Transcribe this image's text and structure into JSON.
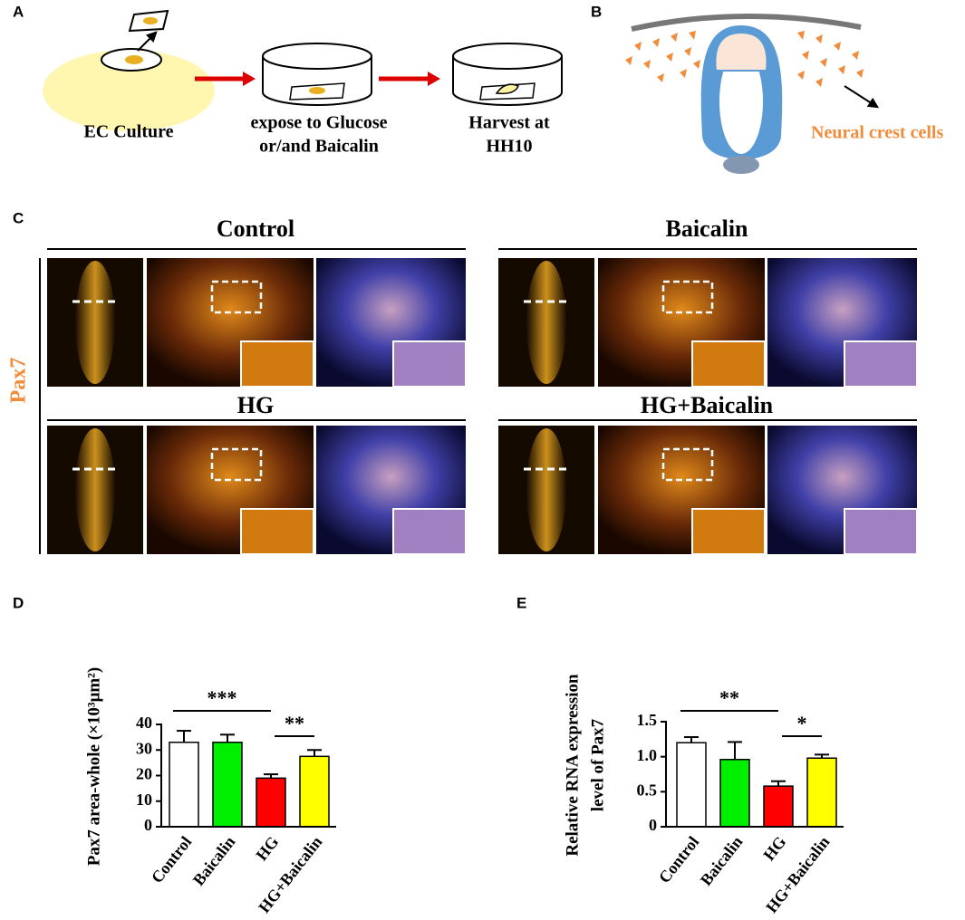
{
  "panels": {
    "a": {
      "label": "A",
      "steps": [
        [
          "EC Culture"
        ],
        [
          "expose to Glucose",
          "or/and Baicalin"
        ],
        [
          "Harvest at",
          "HH10"
        ]
      ]
    },
    "b": {
      "label": "B",
      "annotation": "Neural crest cells"
    },
    "c": {
      "label": "C",
      "marker": "Pax7",
      "groups": [
        "Control",
        "Baicalin",
        "HG",
        "HG+Baicalin"
      ]
    },
    "d": {
      "label": "D"
    },
    "e": {
      "label": "E"
    }
  },
  "chart_data": [
    {
      "type": "bar",
      "ylabel": [
        "Pax7 area-whole (×10³μm²)"
      ],
      "categories": [
        "Control",
        "Baicalin",
        "HG",
        "HG+Baicalin"
      ],
      "values": [
        33,
        33,
        19,
        27.5
      ],
      "errors": [
        4.5,
        3,
        1.5,
        2.5
      ],
      "colors": [
        "#ffffff",
        "#00ee00",
        "#ff0000",
        "#ffff00"
      ],
      "ylim": [
        0,
        40
      ],
      "yticks": [
        0,
        10,
        20,
        30,
        40
      ],
      "grid": false,
      "annotations": [
        "***",
        "**"
      ]
    },
    {
      "type": "bar",
      "ylabel": [
        "Relative RNA expression",
        "level of Pax7"
      ],
      "categories": [
        "Control",
        "Baicalin",
        "HG",
        "HG+Baicalin"
      ],
      "values": [
        1.2,
        0.96,
        0.58,
        0.98
      ],
      "errors": [
        0.08,
        0.25,
        0.07,
        0.05
      ],
      "colors": [
        "#ffffff",
        "#00ee00",
        "#ff0000",
        "#ffff00"
      ],
      "ylim": [
        0,
        1.5
      ],
      "yticks": [
        0,
        0.5,
        {
          "value": 1,
          "label": "1.0"
        },
        1.5
      ],
      "grid": false,
      "annotations": [
        "**",
        "*"
      ]
    }
  ]
}
